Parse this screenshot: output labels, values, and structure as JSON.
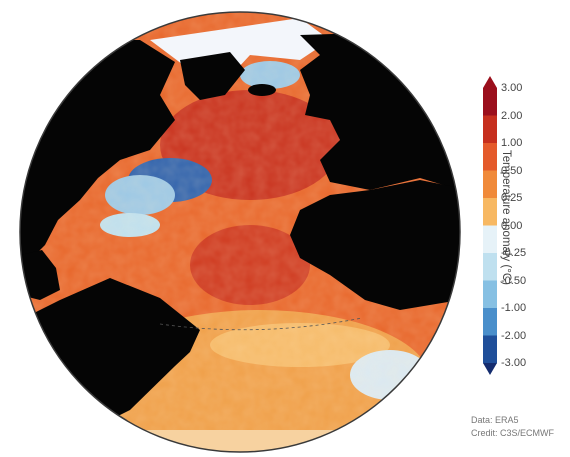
{
  "colorbar": {
    "title": "Temperature anomaly (°C)",
    "ticks": [
      "3.00",
      "2.00",
      "1.00",
      "0.50",
      "0.25",
      "0.00",
      "-0.25",
      "-0.50",
      "-1.00",
      "-2.00",
      "-3.00"
    ],
    "colors": [
      "#9b0f1c",
      "#c62f1e",
      "#e45a2b",
      "#f08a3a",
      "#f7b862",
      "#fde3b0",
      "#e6f2f8",
      "#bfe0ef",
      "#86c0e3",
      "#4a8fcb",
      "#1f4f9a",
      "#142c6e"
    ]
  },
  "map": {
    "ocean_palette": {
      "warm": "#e45a2b",
      "hot": "#c62f1e",
      "mild": "#f2a24a",
      "cool": "#9cc8e6",
      "cold": "#2f62ad",
      "ice": "#f3f6fb"
    },
    "land_color": "#050505"
  },
  "credits": {
    "data": "Data: ERA5",
    "credit": "Credit: C3S/ECMWF"
  }
}
